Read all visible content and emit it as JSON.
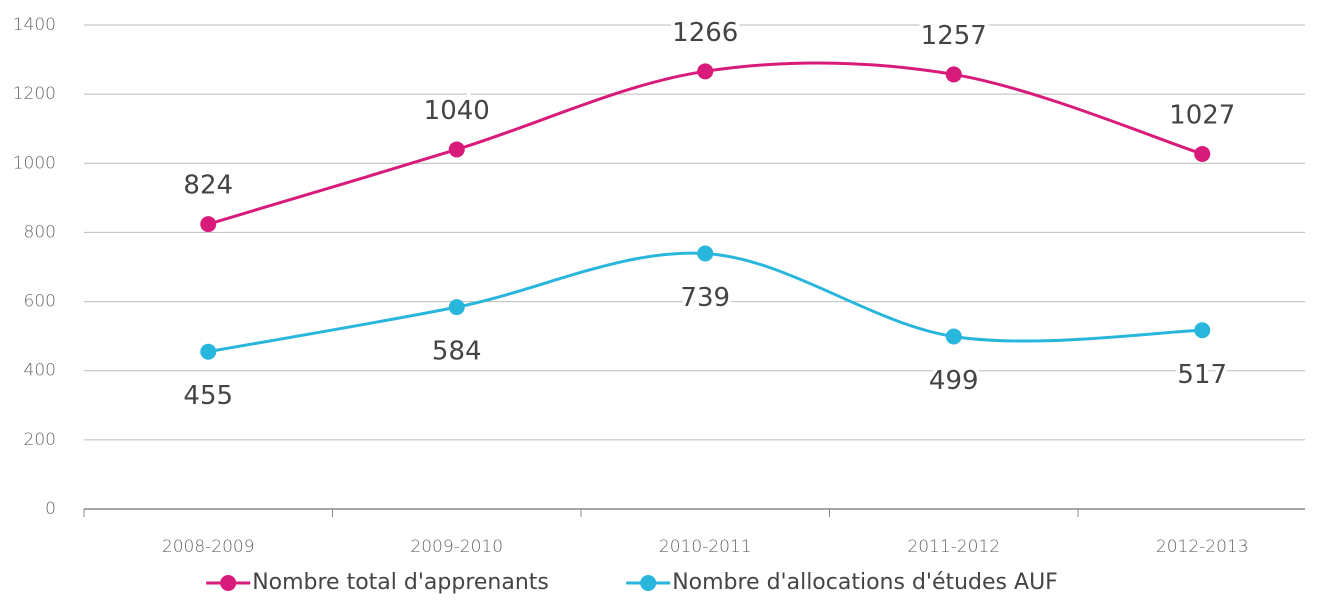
{
  "chart_data": {
    "type": "line",
    "categories": [
      "2008-2009",
      "2009-2010",
      "2010-2011",
      "2011-2012",
      "2012-2013"
    ],
    "series": [
      {
        "name": "Nombre total d'apprenants",
        "color": "#d81b7a",
        "values": [
          824,
          1040,
          1266,
          1257,
          1027
        ]
      },
      {
        "name": "Nombre d'allocations d'études AUF",
        "color": "#29b6dd",
        "values": [
          455,
          584,
          739,
          499,
          517
        ]
      }
    ],
    "ylim": [
      0,
      1400
    ],
    "yticks": [
      0,
      200,
      400,
      600,
      800,
      1000,
      1200,
      1400
    ],
    "grid": true,
    "smooth": true,
    "legend": "bottom"
  }
}
